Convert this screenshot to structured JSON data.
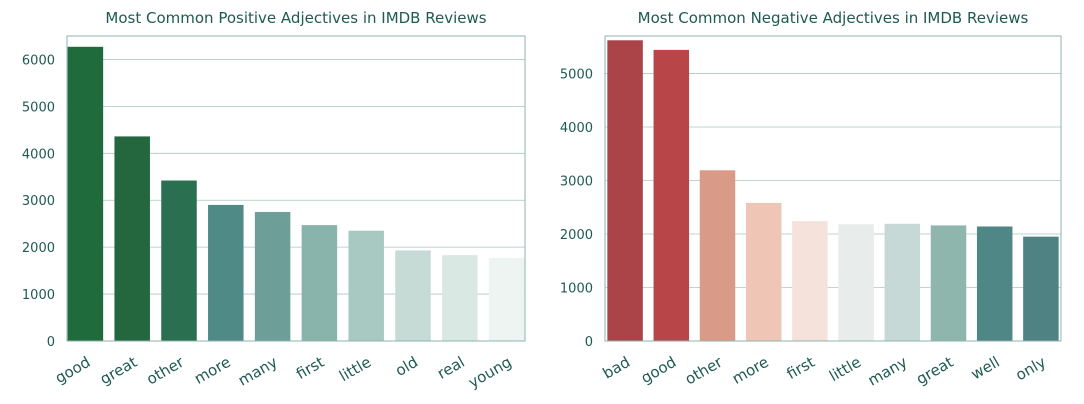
{
  "chart_data": [
    {
      "type": "bar",
      "title": "Most Common Positive Adjectives in IMDB Reviews",
      "xlabel": "",
      "ylabel": "",
      "ylim": [
        0,
        6500
      ],
      "yticks": [
        0,
        1000,
        2000,
        3000,
        4000,
        5000,
        6000
      ],
      "grid": "horizontal",
      "categories": [
        "good",
        "great",
        "other",
        "more",
        "many",
        "first",
        "little",
        "old",
        "real",
        "young"
      ],
      "values": [
        6270,
        4360,
        3420,
        2900,
        2750,
        2470,
        2350,
        1930,
        1830,
        1770
      ],
      "colors": [
        "#1f6b3c",
        "#24673f",
        "#2a6f4f",
        "#4f8a86",
        "#6e9e98",
        "#88b4ab",
        "#a8c9c2",
        "#c6dbd6",
        "#dae8e4",
        "#edf4f2"
      ]
    },
    {
      "type": "bar",
      "title": "Most Common Negative Adjectives in IMDB Reviews",
      "xlabel": "",
      "ylabel": "",
      "ylim": [
        0,
        5700
      ],
      "yticks": [
        0,
        1000,
        2000,
        3000,
        4000,
        5000
      ],
      "grid": "horizontal",
      "categories": [
        "bad",
        "good",
        "other",
        "more",
        "first",
        "little",
        "many",
        "great",
        "well",
        "only"
      ],
      "values": [
        5620,
        5440,
        3190,
        2580,
        2240,
        2180,
        2190,
        2160,
        2140,
        1950
      ],
      "colors": [
        "#ab4449",
        "#b84648",
        "#d99a87",
        "#efc6b5",
        "#f5e2db",
        "#e8eceb",
        "#c7d9d6",
        "#8fb6ac",
        "#4f8686",
        "#4f8282"
      ]
    }
  ]
}
